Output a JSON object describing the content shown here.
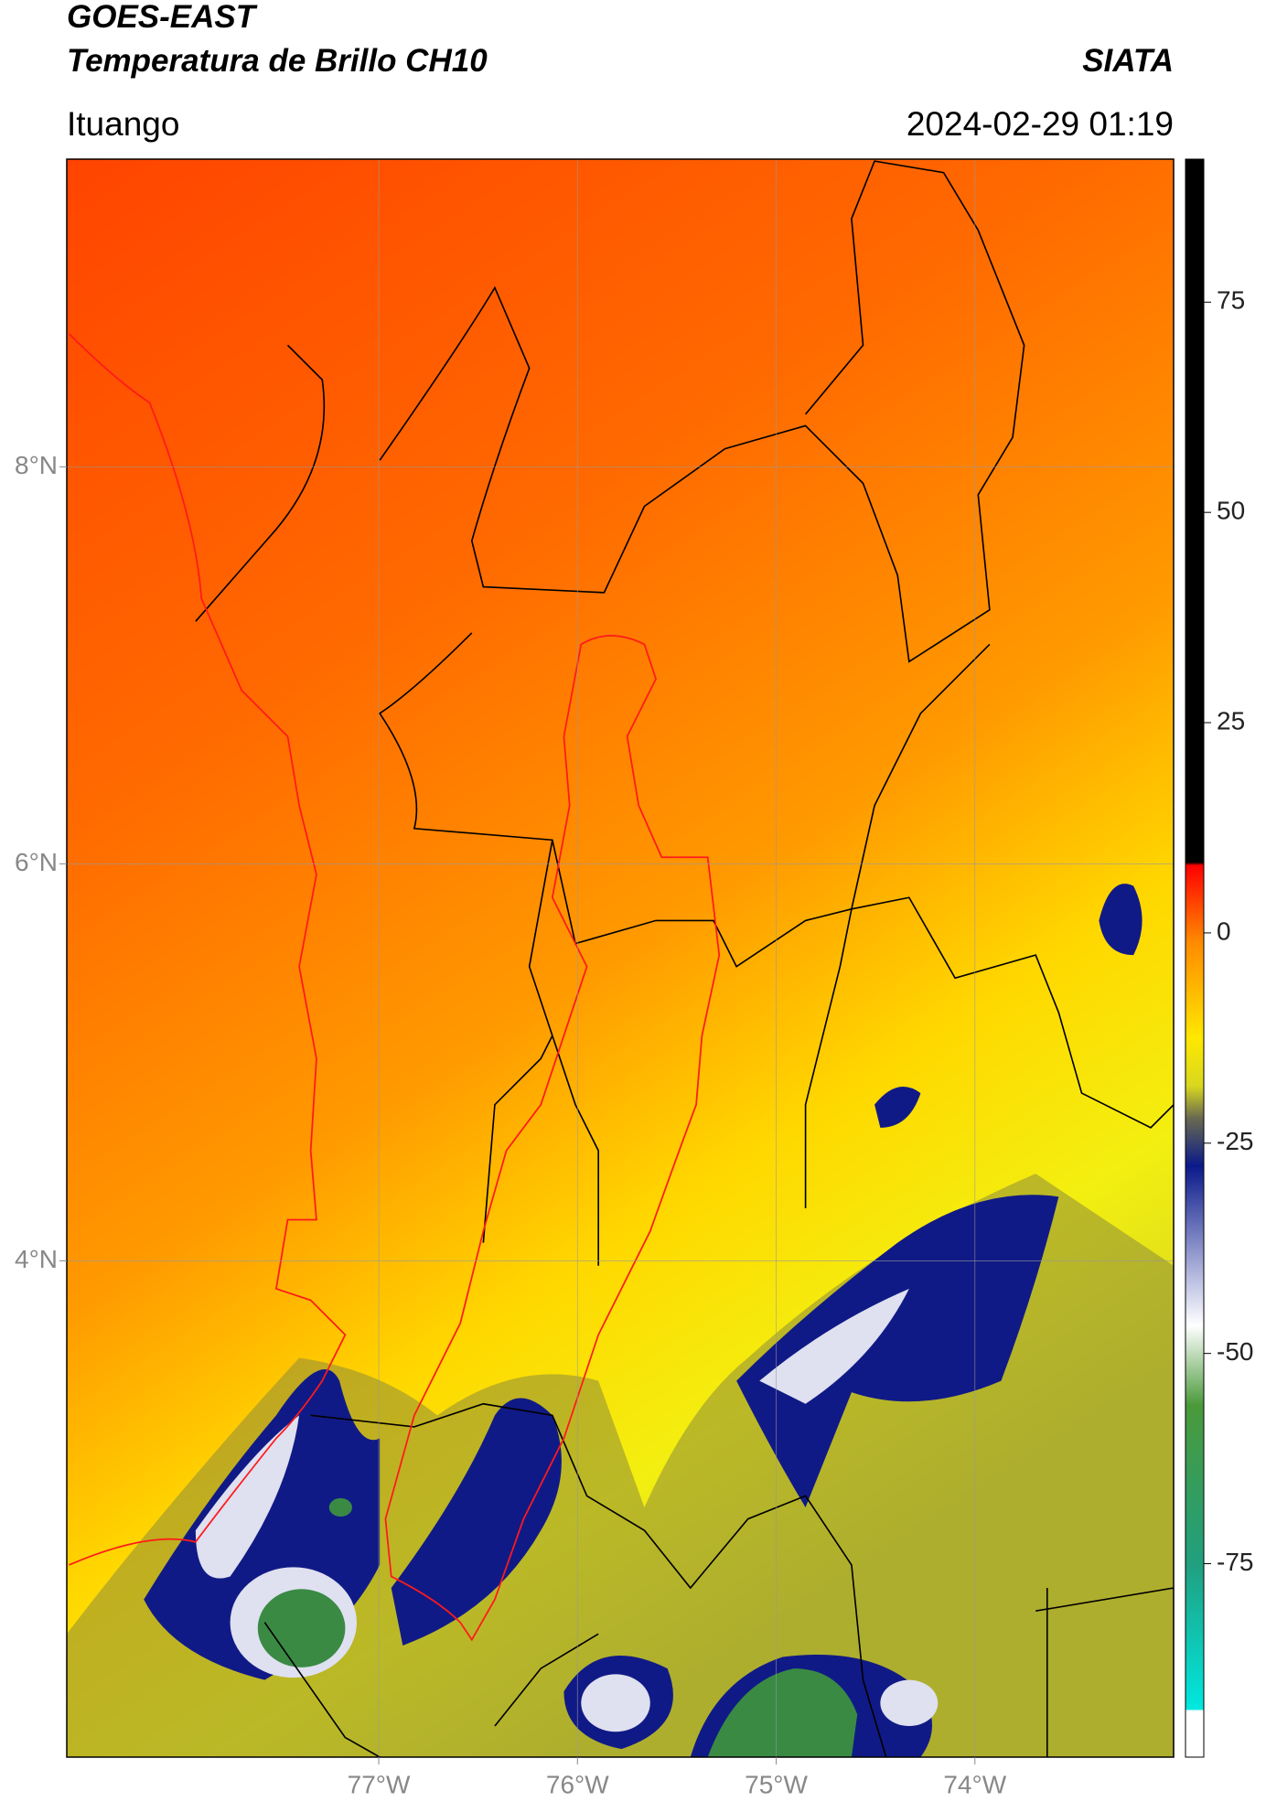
{
  "header": {
    "title": "GOES-EAST",
    "subtitle": "Temperatura de Brillo CH10",
    "source": "SIATA",
    "location": "Ituango",
    "timestamp": "2024-02-29 01:19"
  },
  "map": {
    "lon_range": [
      -78.57,
      -73.0
    ],
    "lat_range": [
      1.5,
      9.55
    ],
    "lon_ticks": [
      {
        "value": -77,
        "label": "77°W"
      },
      {
        "value": -76,
        "label": "76°W"
      },
      {
        "value": -75,
        "label": "75°W"
      },
      {
        "value": -74,
        "label": "74°W"
      }
    ],
    "lat_ticks": [
      {
        "value": 8,
        "label": "8°N"
      },
      {
        "value": 6,
        "label": "6°N"
      },
      {
        "value": 4,
        "label": "4°N"
      }
    ]
  },
  "colorbar": {
    "range": [
      -98,
      92
    ],
    "ticks": [
      75,
      50,
      25,
      0,
      -25,
      -50,
      -75
    ]
  }
}
